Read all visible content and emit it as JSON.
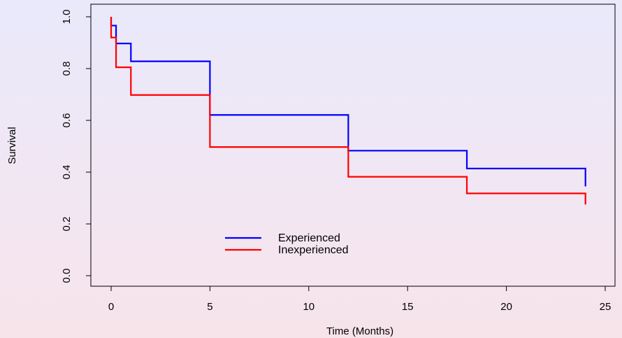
{
  "chart_data": {
    "type": "line",
    "step": true,
    "title": "",
    "xlabel": "Time (Months)",
    "ylabel": "Survival",
    "xlim": [
      -0.5,
      25
    ],
    "ylim": [
      0,
      1.0
    ],
    "x_ticks": [
      0,
      5,
      10,
      15,
      20,
      25
    ],
    "x_tick_labels": [
      "0",
      "5",
      "10",
      "15",
      "20",
      "25"
    ],
    "y_ticks": [
      0.0,
      0.2,
      0.4,
      0.6,
      0.8,
      1.0
    ],
    "y_tick_labels": [
      "0.0",
      "0.2",
      "0.4",
      "0.6",
      "0.8",
      "1.0"
    ],
    "grid": false,
    "legend_position": "lower-center",
    "series": [
      {
        "name": "Experienced",
        "color": "#0000ff",
        "x": [
          0,
          0.25,
          1,
          5,
          12,
          18,
          24
        ],
        "values": [
          0.966,
          0.897,
          0.828,
          0.621,
          0.483,
          0.414,
          0.345
        ]
      },
      {
        "name": "Inexperienced",
        "color": "#ff0000",
        "x": [
          0,
          0.25,
          1,
          5,
          12,
          18,
          24
        ],
        "values": [
          0.92,
          0.805,
          0.698,
          0.497,
          0.382,
          0.318,
          0.275
        ]
      }
    ]
  }
}
